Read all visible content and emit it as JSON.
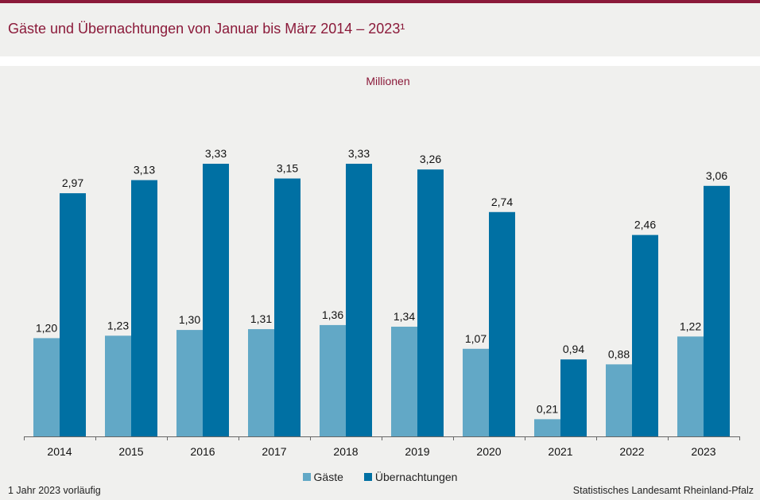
{
  "header": {
    "title": "Gäste und Übernachtungen von Januar bis März 2014 – 2023¹"
  },
  "chart_data": {
    "type": "bar",
    "title": "Gäste und Übernachtungen von Januar bis März 2014 – 2023¹",
    "ylabel": "Millionen",
    "xlabel": "",
    "ylim": [
      0,
      3.6
    ],
    "grid": false,
    "legend_position": "bottom-center",
    "categories": [
      "2014",
      "2015",
      "2016",
      "2017",
      "2018",
      "2019",
      "2020",
      "2021",
      "2022",
      "2023"
    ],
    "series": [
      {
        "name": "Gäste",
        "color": "#62a8c6",
        "values": [
          1.2,
          1.23,
          1.3,
          1.31,
          1.36,
          1.34,
          1.07,
          0.21,
          0.88,
          1.22
        ],
        "labels": [
          "1,20",
          "1,23",
          "1,30",
          "1,31",
          "1,36",
          "1,34",
          "1,07",
          "0,21",
          "0,88",
          "1,22"
        ]
      },
      {
        "name": "Übernachtungen",
        "color": "#0070a3",
        "values": [
          2.97,
          3.13,
          3.33,
          3.15,
          3.33,
          3.26,
          2.74,
          0.94,
          2.46,
          3.06
        ],
        "labels": [
          "2,97",
          "3,13",
          "3,33",
          "3,15",
          "3,33",
          "3,26",
          "2,74",
          "0,94",
          "2,46",
          "3,06"
        ]
      }
    ]
  },
  "footer": {
    "footnote": "1 Jahr 2023 vorläufig",
    "source": "Statistisches Landesamt Rheinland-Pfalz"
  }
}
